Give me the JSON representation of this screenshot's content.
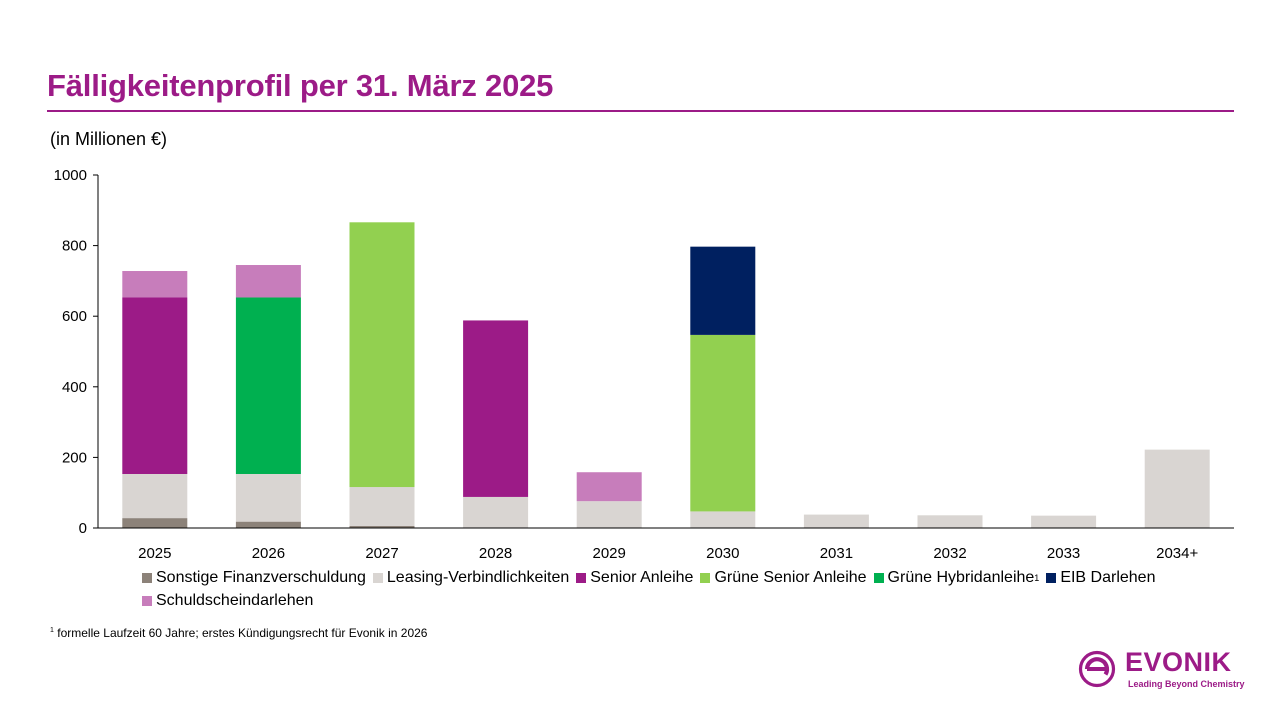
{
  "page": {
    "title": "Fälligkeitenprofil per 31. März 2025",
    "unit_label": "(in Millionen €)",
    "footnote_marker": "1",
    "footnote_text": "formelle Laufzeit 60 Jahre; erstes Kündigungsrecht für Evonik in 2026"
  },
  "logo": {
    "name": "EVONIK",
    "claim": "Leading Beyond Chemistry",
    "icon": "evonik-e-icon",
    "color": "#9c1b87"
  },
  "chart_data": {
    "type": "bar",
    "stacked": true,
    "title": "Fälligkeitenprofil per 31. März 2025",
    "ylabel": "(in Millionen €)",
    "xlabel": "",
    "ylim": [
      0,
      1000
    ],
    "yticks": [
      0,
      200,
      400,
      600,
      800,
      1000
    ],
    "grid": false,
    "legend_position": "bottom",
    "categories": [
      "2025",
      "2026",
      "2027",
      "2028",
      "2029",
      "2030",
      "2031",
      "2032",
      "2033",
      "2034+"
    ],
    "series": [
      {
        "name": "Sonstige Finanzverschuldung",
        "color": "#8c8279",
        "values": [
          28,
          18,
          6,
          0,
          0,
          0,
          0,
          0,
          0,
          0
        ]
      },
      {
        "name": "Leasing-Verbindlichkeiten",
        "color": "#d9d5d2",
        "values": [
          125,
          135,
          110,
          88,
          76,
          47,
          38,
          36,
          35,
          222
        ]
      },
      {
        "name": "Senior Anleihe",
        "color": "#9c1b87",
        "values": [
          500,
          0,
          0,
          500,
          0,
          0,
          0,
          0,
          0,
          0
        ]
      },
      {
        "name": "Grüne Senior Anleihe",
        "color": "#92d050",
        "values": [
          0,
          0,
          750,
          0,
          0,
          500,
          0,
          0,
          0,
          0
        ]
      },
      {
        "name": "Grüne Hybridanleihe",
        "footnote": "1",
        "color": "#00b050",
        "values": [
          0,
          500,
          0,
          0,
          0,
          0,
          0,
          0,
          0,
          0
        ]
      },
      {
        "name": "EIB Darlehen",
        "color": "#002060",
        "values": [
          0,
          0,
          0,
          0,
          0,
          250,
          0,
          0,
          0,
          0
        ]
      },
      {
        "name": "Schuldscheindarlehen",
        "color": "#c77dbb",
        "values": [
          75,
          92,
          0,
          0,
          82,
          0,
          0,
          0,
          0,
          0
        ]
      }
    ]
  }
}
